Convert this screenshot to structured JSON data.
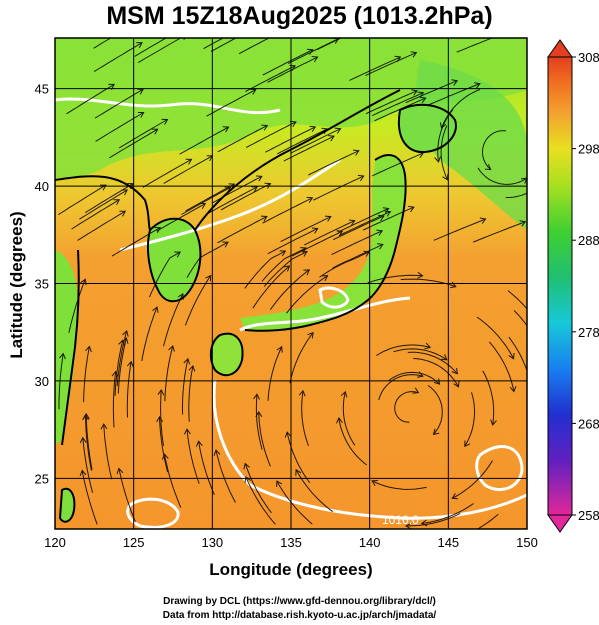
{
  "title": "MSM 15Z18Aug2025 (1013.2hPa)",
  "footer": {
    "line1": "Drawing by DCL (https://www.gfd-dennou.org/library/dcl/)",
    "line2": "Data from http://database.rish.kyoto-u.ac.jp/arch/jmadata/"
  },
  "map": {
    "xlabel": "Longitude (degrees)",
    "ylabel": "Latitude  (degrees)",
    "lon_range": [
      120,
      150
    ],
    "lat_range": [
      22.4,
      47.6
    ],
    "lon_ticks": [
      "120",
      "125",
      "130",
      "135",
      "140",
      "145",
      "150"
    ],
    "lat_ticks": [
      "25",
      "30",
      "35",
      "40",
      "45"
    ],
    "contour_label": "1016.0",
    "colors": {
      "land_green": "#7ee23a",
      "warm_orange": "#f49a2c",
      "yellow": "#d8ee1a"
    }
  },
  "colorbar": {
    "min": 258,
    "max": 308,
    "ticks": [
      "308",
      "298",
      "288",
      "278",
      "268",
      "258"
    ],
    "colors": [
      "#e0289a",
      "#2020c8",
      "#1878f0",
      "#18c8d8",
      "#20c060",
      "#40d030",
      "#a0e020",
      "#e8e020",
      "#f4a030",
      "#f07020",
      "#e04020"
    ]
  }
}
